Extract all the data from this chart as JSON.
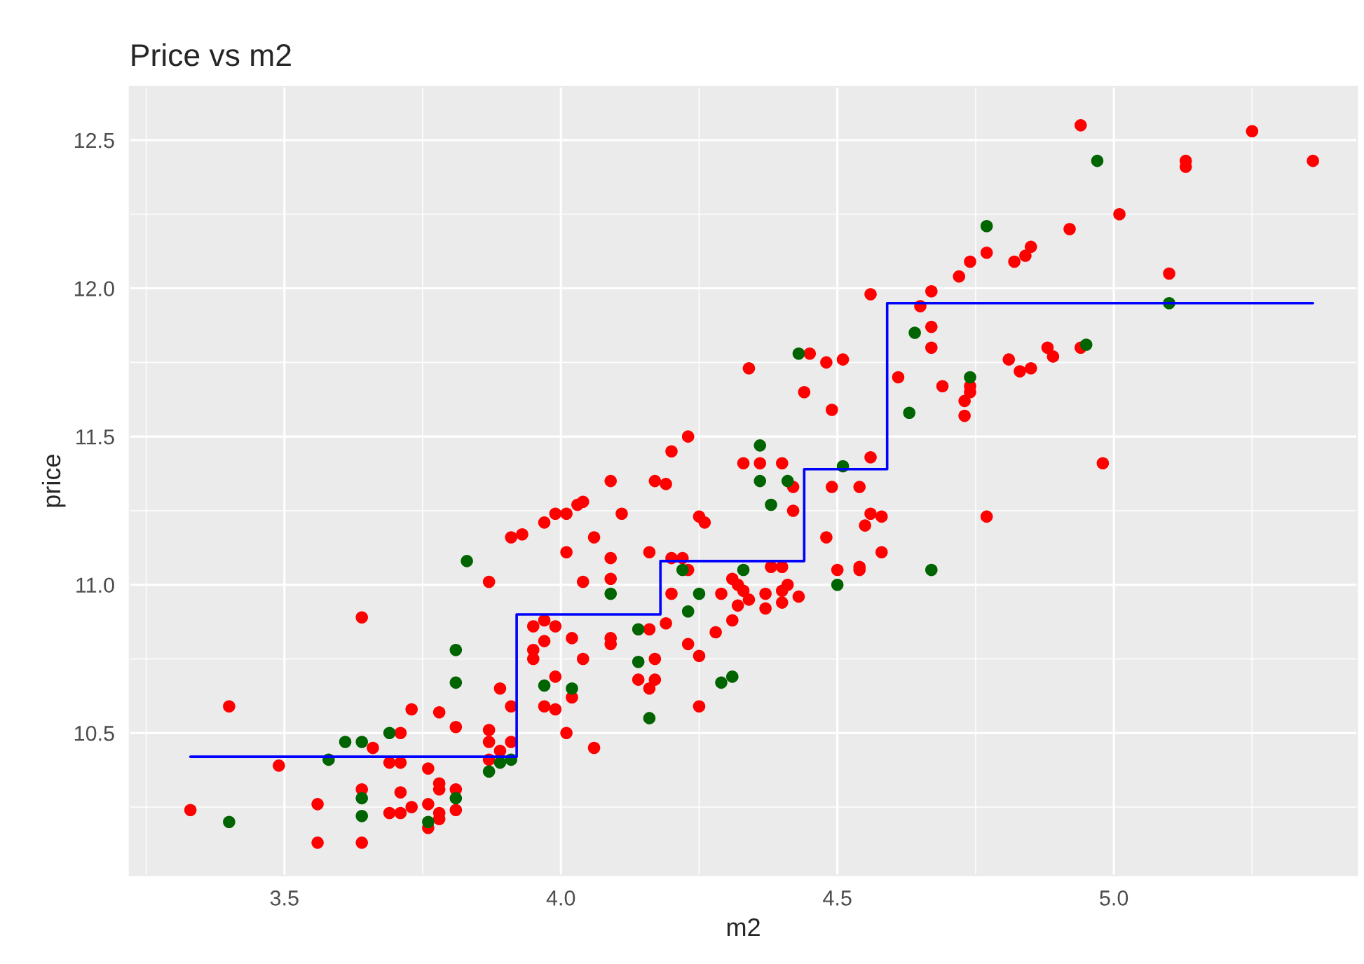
{
  "chart_data": {
    "type": "scatter",
    "title": "Price vs m2",
    "xlabel": "m2",
    "ylabel": "price",
    "xlim": [
      3.22,
      5.44
    ],
    "ylim": [
      10.02,
      12.68
    ],
    "xticks": [
      {
        "value": 3.5,
        "label": "3.5"
      },
      {
        "value": 4,
        "label": "4.0"
      },
      {
        "value": 4.5,
        "label": "4.5"
      },
      {
        "value": 5,
        "label": "5.0"
      }
    ],
    "yticks": [
      {
        "value": 10.5,
        "label": "10.5"
      },
      {
        "value": 11,
        "label": "11.0"
      },
      {
        "value": 11.5,
        "label": "11.5"
      },
      {
        "value": 12,
        "label": "12.0"
      },
      {
        "value": 12.5,
        "label": "12.5"
      }
    ],
    "grid": true,
    "marker": "circle",
    "series": [
      {
        "color": "#ff0000",
        "x": [
          3.33,
          3.4,
          3.49,
          3.56,
          3.56,
          3.64,
          3.64,
          3.64,
          3.66,
          3.71,
          3.69,
          3.71,
          3.71,
          3.69,
          3.71,
          3.73,
          3.73,
          3.76,
          3.76,
          3.76,
          3.78,
          3.78,
          3.78,
          3.78,
          3.78,
          3.81,
          3.81,
          3.81,
          3.87,
          3.87,
          3.87,
          3.87,
          3.89,
          3.89,
          3.91,
          3.91,
          3.93,
          3.91,
          3.95,
          3.97,
          3.99,
          3.95,
          3.95,
          3.97,
          3.97,
          3.97,
          3.99,
          3.99,
          3.99,
          4.01,
          4.03,
          4.04,
          4.09,
          4.11,
          4.06,
          4.01,
          4.09,
          4.04,
          4.09,
          4.02,
          4.04,
          4.02,
          4.09,
          4.09,
          4.06,
          4.01,
          4.16,
          4.17,
          4.19,
          4.2,
          4.23,
          4.25,
          4.26,
          4.2,
          4.22,
          4.23,
          4.2,
          4.19,
          4.16,
          4.23,
          4.25,
          4.17,
          4.14,
          4.16,
          4.17,
          4.25,
          4.28,
          4.31,
          4.32,
          4.29,
          4.31,
          4.32,
          4.33,
          4.34,
          4.37,
          4.37,
          4.38,
          4.4,
          4.4,
          4.41,
          4.4,
          4.43,
          4.33,
          4.36,
          4.4,
          4.42,
          4.42,
          4.56,
          4.49,
          4.54,
          4.48,
          4.56,
          4.58,
          4.55,
          4.58,
          4.5,
          4.54,
          4.54,
          4.34,
          4.45,
          4.48,
          4.51,
          4.44,
          4.49,
          4.94,
          5.13,
          5.13,
          5.25,
          5.36,
          5.01,
          4.92,
          4.77,
          4.74,
          4.72,
          4.82,
          4.84,
          4.85,
          4.67,
          4.56,
          4.65,
          5.1,
          4.67,
          4.67,
          4.94,
          4.88,
          4.89,
          4.81,
          4.83,
          4.85,
          4.61,
          4.69,
          4.74,
          4.74,
          4.73,
          4.73,
          4.98,
          4.77
        ],
        "values": [
          10.24,
          10.59,
          10.39,
          10.26,
          10.13,
          10.89,
          10.31,
          10.13,
          10.45,
          10.5,
          10.4,
          10.4,
          10.3,
          10.23,
          10.23,
          10.58,
          10.25,
          10.38,
          10.26,
          10.18,
          10.57,
          10.33,
          10.31,
          10.23,
          10.21,
          10.52,
          10.31,
          10.24,
          11.01,
          10.51,
          10.47,
          10.41,
          10.65,
          10.44,
          10.59,
          10.47,
          11.17,
          11.16,
          10.86,
          10.88,
          10.86,
          10.78,
          10.75,
          10.81,
          11.21,
          10.59,
          10.58,
          10.69,
          11.24,
          11.24,
          11.27,
          11.28,
          11.35,
          11.24,
          11.16,
          11.11,
          11.09,
          11.01,
          11.02,
          10.82,
          10.75,
          10.62,
          10.82,
          10.8,
          10.45,
          10.5,
          11.11,
          11.35,
          11.34,
          11.45,
          11.5,
          11.23,
          11.21,
          11.09,
          11.09,
          11.05,
          10.97,
          10.87,
          10.85,
          10.8,
          10.76,
          10.75,
          10.68,
          10.65,
          10.68,
          10.59,
          10.84,
          10.88,
          10.93,
          10.97,
          11.02,
          11.0,
          10.98,
          10.95,
          10.97,
          10.92,
          11.06,
          11.06,
          10.98,
          11.0,
          10.94,
          10.96,
          11.41,
          11.41,
          11.41,
          11.33,
          11.25,
          11.43,
          11.33,
          11.33,
          11.16,
          11.24,
          11.23,
          11.2,
          11.11,
          11.05,
          11.06,
          11.05,
          11.73,
          11.78,
          11.75,
          11.76,
          11.65,
          11.59,
          12.55,
          12.43,
          12.41,
          12.53,
          12.43,
          12.25,
          12.2,
          12.12,
          12.09,
          12.04,
          12.09,
          12.11,
          12.14,
          11.99,
          11.98,
          11.94,
          12.05,
          11.87,
          11.8,
          11.8,
          11.8,
          11.77,
          11.76,
          11.72,
          11.73,
          11.7,
          11.67,
          11.67,
          11.65,
          11.62,
          11.57,
          11.41,
          11.23
        ]
      },
      {
        "color": "#006400",
        "x": [
          3.4,
          3.58,
          3.61,
          3.64,
          3.64,
          3.64,
          3.69,
          3.76,
          3.81,
          3.81,
          3.81,
          3.83,
          3.87,
          3.89,
          3.91,
          3.97,
          4.09,
          4.22,
          4.25,
          4.23,
          4.14,
          4.14,
          4.16,
          4.29,
          4.31,
          4.33,
          4.02,
          4.36,
          4.36,
          4.41,
          4.38,
          4.51,
          4.5,
          4.43,
          4.97,
          4.77,
          5.1,
          4.64,
          4.95,
          4.74,
          4.63,
          4.67
        ],
        "values": [
          10.2,
          10.41,
          10.47,
          10.47,
          10.28,
          10.22,
          10.5,
          10.2,
          10.67,
          10.78,
          10.28,
          11.08,
          10.37,
          10.4,
          10.41,
          10.66,
          10.97,
          11.05,
          10.97,
          10.91,
          10.85,
          10.74,
          10.55,
          10.67,
          10.69,
          11.05,
          10.65,
          11.47,
          11.35,
          11.35,
          11.27,
          11.4,
          11.0,
          11.78,
          12.43,
          12.21,
          11.95,
          11.85,
          11.81,
          11.7,
          11.58,
          11.05
        ]
      },
      {
        "type": "step",
        "color": "#0000ff",
        "marker": "none",
        "x": [
          3.33,
          3.92,
          4.18,
          4.44,
          4.59,
          5.36
        ],
        "values": [
          10.42,
          10.9,
          11.08,
          11.39,
          11.95,
          11.95
        ]
      }
    ]
  }
}
